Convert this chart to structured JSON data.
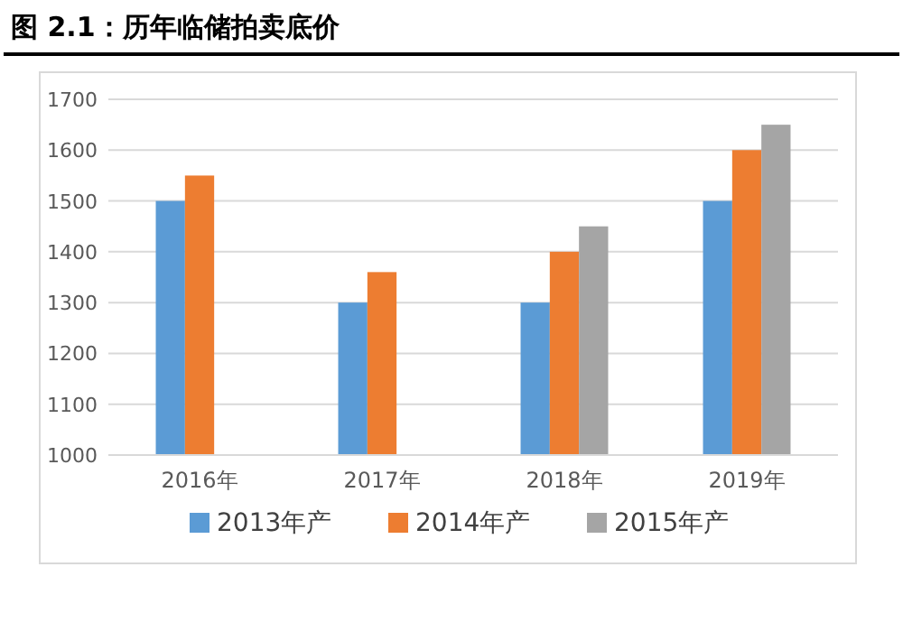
{
  "chart_data": {
    "type": "bar",
    "title": "图 2.1：历年临储拍卖底价",
    "categories": [
      "2016年",
      "2017年",
      "2018年",
      "2019年"
    ],
    "series": [
      {
        "name": "2013年产",
        "color": "#5b9bd5",
        "values": [
          1500,
          1300,
          1300,
          1500
        ]
      },
      {
        "name": "2014年产",
        "color": "#ed7d31",
        "values": [
          1550,
          1360,
          1400,
          1600
        ]
      },
      {
        "name": "2015年产",
        "color": "#a5a5a5",
        "values": [
          null,
          null,
          1450,
          1650
        ]
      }
    ],
    "ylim": [
      1000,
      1700
    ],
    "yticks": [
      1000,
      1100,
      1200,
      1300,
      1400,
      1500,
      1600,
      1700
    ],
    "grid": "y",
    "legend": "bottom"
  }
}
